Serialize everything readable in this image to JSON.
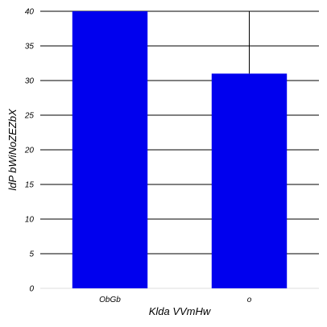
{
  "chart_data": {
    "type": "bar",
    "categories": [
      "ObGb",
      "o"
    ],
    "values": [
      40,
      31
    ],
    "error_bar_upper": [
      null,
      40
    ],
    "xlabel": "Klda VVmHw",
    "ylabel": "ldP bWiNoZEZbX",
    "ylim": [
      0,
      40
    ],
    "yticks": [
      0,
      5,
      10,
      15,
      20,
      25,
      30,
      35,
      40
    ],
    "grid": "horizontal",
    "bar_color": "#0000ee",
    "grid_color": "#000000"
  }
}
